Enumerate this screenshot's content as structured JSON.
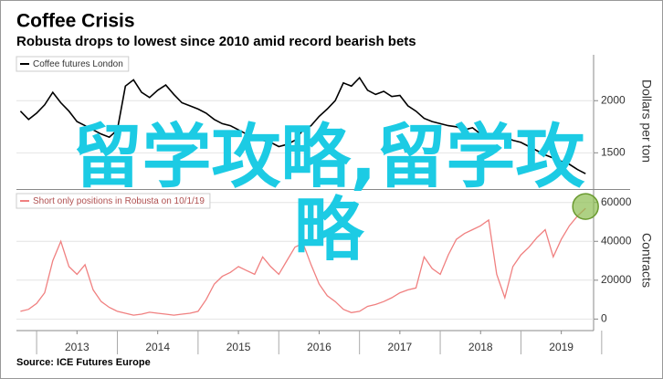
{
  "overlay_text": "留学攻略,留学攻略",
  "chart_data": [
    {
      "type": "line",
      "title": "Coffee Crisis",
      "subtitle": "Robusta drops to lowest since 2010 amid record bearish bets",
      "y_label": "Dollars per ton",
      "grid": true,
      "legend": "top-left",
      "xlim": [
        2012.75,
        2019.9
      ],
      "ylim": [
        1170,
        2440
      ],
      "yticks": [
        1500,
        2000
      ],
      "x": [
        2012.8,
        2012.9,
        2013.0,
        2013.1,
        2013.2,
        2013.3,
        2013.4,
        2013.5,
        2013.6,
        2013.7,
        2013.8,
        2013.9,
        2014.0,
        2014.1,
        2014.2,
        2014.3,
        2014.4,
        2014.5,
        2014.6,
        2014.7,
        2014.8,
        2014.9,
        2015.0,
        2015.1,
        2015.2,
        2015.3,
        2015.4,
        2015.5,
        2015.6,
        2015.7,
        2015.8,
        2015.9,
        2016.0,
        2016.1,
        2016.2,
        2016.3,
        2016.4,
        2016.5,
        2016.6,
        2016.7,
        2016.8,
        2016.9,
        2017.0,
        2017.1,
        2017.2,
        2017.3,
        2017.4,
        2017.5,
        2017.6,
        2017.7,
        2017.8,
        2017.9,
        2018.0,
        2018.1,
        2018.2,
        2018.3,
        2018.4,
        2018.5,
        2018.6,
        2018.7,
        2018.8,
        2018.9,
        2019.0,
        2019.1,
        2019.2,
        2019.3,
        2019.4,
        2019.5,
        2019.6,
        2019.7,
        2019.8
      ],
      "series": [
        {
          "name": "Coffee futures London",
          "color": "#000000",
          "values": [
            1900,
            1820,
            1880,
            1960,
            2080,
            1980,
            1900,
            1800,
            1760,
            1720,
            1680,
            1650,
            1720,
            2140,
            2200,
            2080,
            2030,
            2100,
            2150,
            2060,
            1980,
            1950,
            1920,
            1880,
            1820,
            1780,
            1760,
            1720,
            1680,
            1650,
            1620,
            1600,
            1560,
            1580,
            1620,
            1720,
            1760,
            1850,
            1920,
            2000,
            2170,
            2140,
            2220,
            2100,
            2060,
            2090,
            2040,
            2050,
            1950,
            1900,
            1830,
            1800,
            1780,
            1760,
            1750,
            1720,
            1740,
            1680,
            1650,
            1660,
            1650,
            1620,
            1600,
            1560,
            1520,
            1480,
            1450,
            1420,
            1390,
            1340,
            1300
          ]
        }
      ]
    },
    {
      "type": "line",
      "y_label": "Contracts",
      "grid": true,
      "legend": "top-left",
      "source": "Source: ICE Futures Europe",
      "xlim": [
        2012.75,
        2019.9
      ],
      "ylim": [
        -5000,
        65500
      ],
      "yticks": [
        0,
        20000,
        40000,
        60000
      ],
      "xticks": [
        {
          "value": 2013.5,
          "label": "2013"
        },
        {
          "value": 2014.5,
          "label": "2014"
        },
        {
          "value": 2015.5,
          "label": "2015"
        },
        {
          "value": 2016.5,
          "label": "2016"
        },
        {
          "value": 2017.5,
          "label": "2017"
        },
        {
          "value": 2018.5,
          "label": "2018"
        },
        {
          "value": 2019.5,
          "label": "2019"
        }
      ],
      "x": [
        2012.8,
        2012.9,
        2013.0,
        2013.1,
        2013.2,
        2013.3,
        2013.4,
        2013.5,
        2013.6,
        2013.7,
        2013.8,
        2013.9,
        2014.0,
        2014.1,
        2014.2,
        2014.3,
        2014.4,
        2014.5,
        2014.6,
        2014.7,
        2014.8,
        2014.9,
        2015.0,
        2015.1,
        2015.2,
        2015.3,
        2015.4,
        2015.5,
        2015.6,
        2015.7,
        2015.8,
        2015.9,
        2016.0,
        2016.1,
        2016.2,
        2016.3,
        2016.4,
        2016.5,
        2016.6,
        2016.7,
        2016.8,
        2016.9,
        2017.0,
        2017.1,
        2017.2,
        2017.3,
        2017.4,
        2017.5,
        2017.6,
        2017.7,
        2017.8,
        2017.9,
        2018.0,
        2018.1,
        2018.2,
        2018.3,
        2018.4,
        2018.5,
        2018.6,
        2018.7,
        2018.8,
        2018.9,
        2019.0,
        2019.1,
        2019.2,
        2019.3,
        2019.4,
        2019.5,
        2019.6,
        2019.7,
        2019.8
      ],
      "series": [
        {
          "name": "Short only positions in Robusta on 10/1/19",
          "color": "#f08080",
          "values": [
            4000,
            5000,
            8000,
            13500,
            30000,
            40000,
            27000,
            23000,
            28000,
            15000,
            9000,
            6000,
            4000,
            3000,
            2000,
            2500,
            3500,
            3000,
            2500,
            2000,
            2500,
            3000,
            4000,
            10000,
            18000,
            22000,
            24000,
            27000,
            25000,
            23000,
            32000,
            27000,
            23000,
            30000,
            37000,
            39000,
            28000,
            18000,
            12000,
            9000,
            5000,
            3300,
            4000,
            6500,
            7500,
            9000,
            11000,
            13500,
            15000,
            16000,
            32000,
            26000,
            23000,
            33000,
            41000,
            44000,
            46000,
            48000,
            51000,
            23000,
            11000,
            27000,
            33000,
            37000,
            42000,
            46000,
            32000,
            41000,
            48000,
            53000,
            57000
          ]
        }
      ]
    }
  ]
}
